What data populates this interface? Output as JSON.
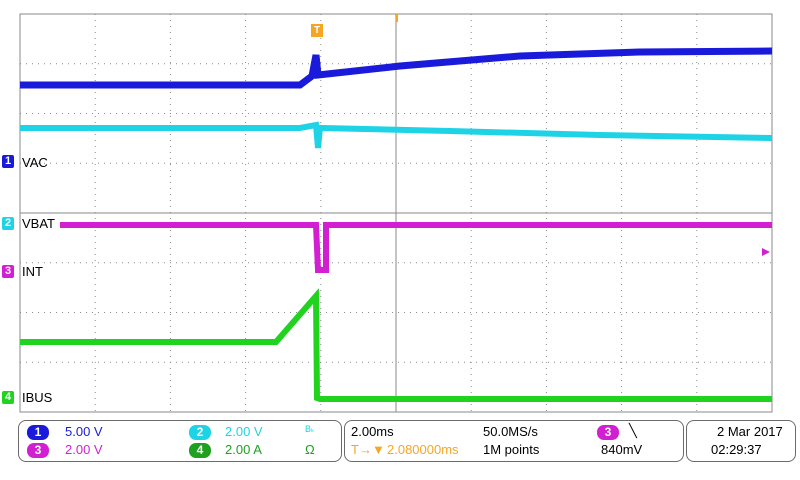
{
  "channels": [
    {
      "num": "1",
      "label": "VAC",
      "scale": "5.00 V",
      "color": "#1a1adb"
    },
    {
      "num": "2",
      "label": "VBAT",
      "scale": "2.00 V",
      "color": "#1fd3e6"
    },
    {
      "num": "3",
      "label": "INT",
      "scale": "2.00 V",
      "color": "#d21fd2"
    },
    {
      "num": "4",
      "label": "IBUS",
      "scale": "2.00 A",
      "color": "#1fd31f"
    }
  ],
  "ch2_extra": "Bₖ",
  "ch4_extra": "Ω",
  "trigger": {
    "marker": "T",
    "icon": "T→▼",
    "position": "2.080000ms",
    "channel": "3",
    "slope": "╲",
    "level": "840mV"
  },
  "timebase": {
    "scale": "2.00ms",
    "sample_rate": "50.0MS/s",
    "record": "1M points"
  },
  "date": "2 Mar  2017",
  "time": "02:29:37",
  "colors": {
    "grid": "#8a8a8a",
    "trigger": "#f5a623"
  }
}
